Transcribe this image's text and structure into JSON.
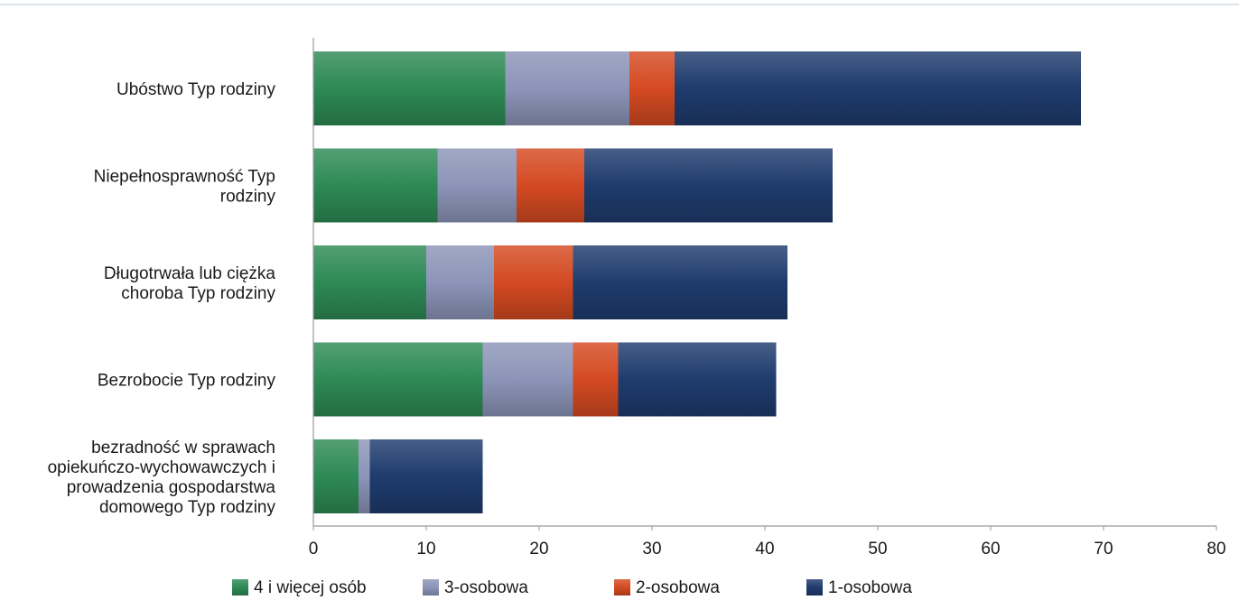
{
  "chart_data": {
    "type": "bar",
    "orientation": "horizontal",
    "stacked": true,
    "title": "",
    "xlabel": "",
    "ylabel": "",
    "categories": [
      "Ubóstwo Typ rodziny",
      "Niepełnosprawność Typ rodziny",
      "Długotrwała lub ciężka choroba Typ rodziny",
      "Bezrobocie Typ rodziny",
      "bezradność w sprawach opiekuńczo-wychowawczych i prowadzenia gospodarstwa domowego Typ rodziny"
    ],
    "category_label_lines": [
      [
        "Ubóstwo Typ rodziny"
      ],
      [
        "Niepełnosprawność Typ",
        "rodziny"
      ],
      [
        "Długotrwała lub ciężka",
        "choroba Typ rodziny"
      ],
      [
        "Bezrobocie Typ rodziny"
      ],
      [
        "bezradność w sprawach",
        "opiekuńczo-wychowawczych i",
        "prowadzenia gospodarstwa",
        "domowego Typ rodziny"
      ]
    ],
    "series": [
      {
        "name": "4  i więcej osób",
        "color": "#2e8a55",
        "values": [
          17,
          11,
          10,
          15,
          4
        ]
      },
      {
        "name": "3-osobowa",
        "color": "#8c95b8",
        "values": [
          11,
          7,
          6,
          8,
          1
        ]
      },
      {
        "name": "2-osobowa",
        "color": "#d44a22",
        "values": [
          4,
          6,
          7,
          4,
          0
        ]
      },
      {
        "name": "1-osobowa",
        "color": "#1f3c6e",
        "values": [
          36,
          22,
          19,
          14,
          10
        ]
      }
    ],
    "xlim": [
      0,
      80
    ],
    "xticks": [
      0,
      10,
      20,
      30,
      40,
      50,
      60,
      70,
      80
    ],
    "grid": false,
    "legend_position": "bottom"
  }
}
